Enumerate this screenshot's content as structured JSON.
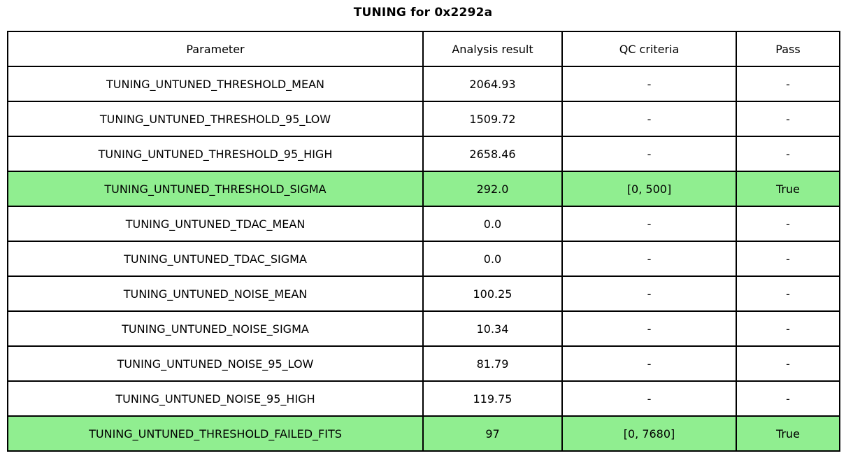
{
  "title": "TUNING for 0x2292a",
  "colors": {
    "highlight_green": "#90ee90",
    "border": "#000000",
    "background": "#ffffff"
  },
  "table": {
    "headers": {
      "parameter": "Parameter",
      "result": "Analysis result",
      "qc": "QC criteria",
      "pass": "Pass"
    },
    "rows": [
      {
        "parameter": "TUNING_UNTUNED_THRESHOLD_MEAN",
        "result": "2064.93",
        "qc": "-",
        "pass": "-",
        "highlight": false
      },
      {
        "parameter": "TUNING_UNTUNED_THRESHOLD_95_LOW",
        "result": "1509.72",
        "qc": "-",
        "pass": "-",
        "highlight": false
      },
      {
        "parameter": "TUNING_UNTUNED_THRESHOLD_95_HIGH",
        "result": "2658.46",
        "qc": "-",
        "pass": "-",
        "highlight": false
      },
      {
        "parameter": "TUNING_UNTUNED_THRESHOLD_SIGMA",
        "result": "292.0",
        "qc": "[0, 500]",
        "pass": "True",
        "highlight": true
      },
      {
        "parameter": "TUNING_UNTUNED_TDAC_MEAN",
        "result": "0.0",
        "qc": "-",
        "pass": "-",
        "highlight": false
      },
      {
        "parameter": "TUNING_UNTUNED_TDAC_SIGMA",
        "result": "0.0",
        "qc": "-",
        "pass": "-",
        "highlight": false
      },
      {
        "parameter": "TUNING_UNTUNED_NOISE_MEAN",
        "result": "100.25",
        "qc": "-",
        "pass": "-",
        "highlight": false
      },
      {
        "parameter": "TUNING_UNTUNED_NOISE_SIGMA",
        "result": "10.34",
        "qc": "-",
        "pass": "-",
        "highlight": false
      },
      {
        "parameter": "TUNING_UNTUNED_NOISE_95_LOW",
        "result": "81.79",
        "qc": "-",
        "pass": "-",
        "highlight": false
      },
      {
        "parameter": "TUNING_UNTUNED_NOISE_95_HIGH",
        "result": "119.75",
        "qc": "-",
        "pass": "-",
        "highlight": false
      },
      {
        "parameter": "TUNING_UNTUNED_THRESHOLD_FAILED_FITS",
        "result": "97",
        "qc": "[0, 7680]",
        "pass": "True",
        "highlight": true
      }
    ]
  }
}
